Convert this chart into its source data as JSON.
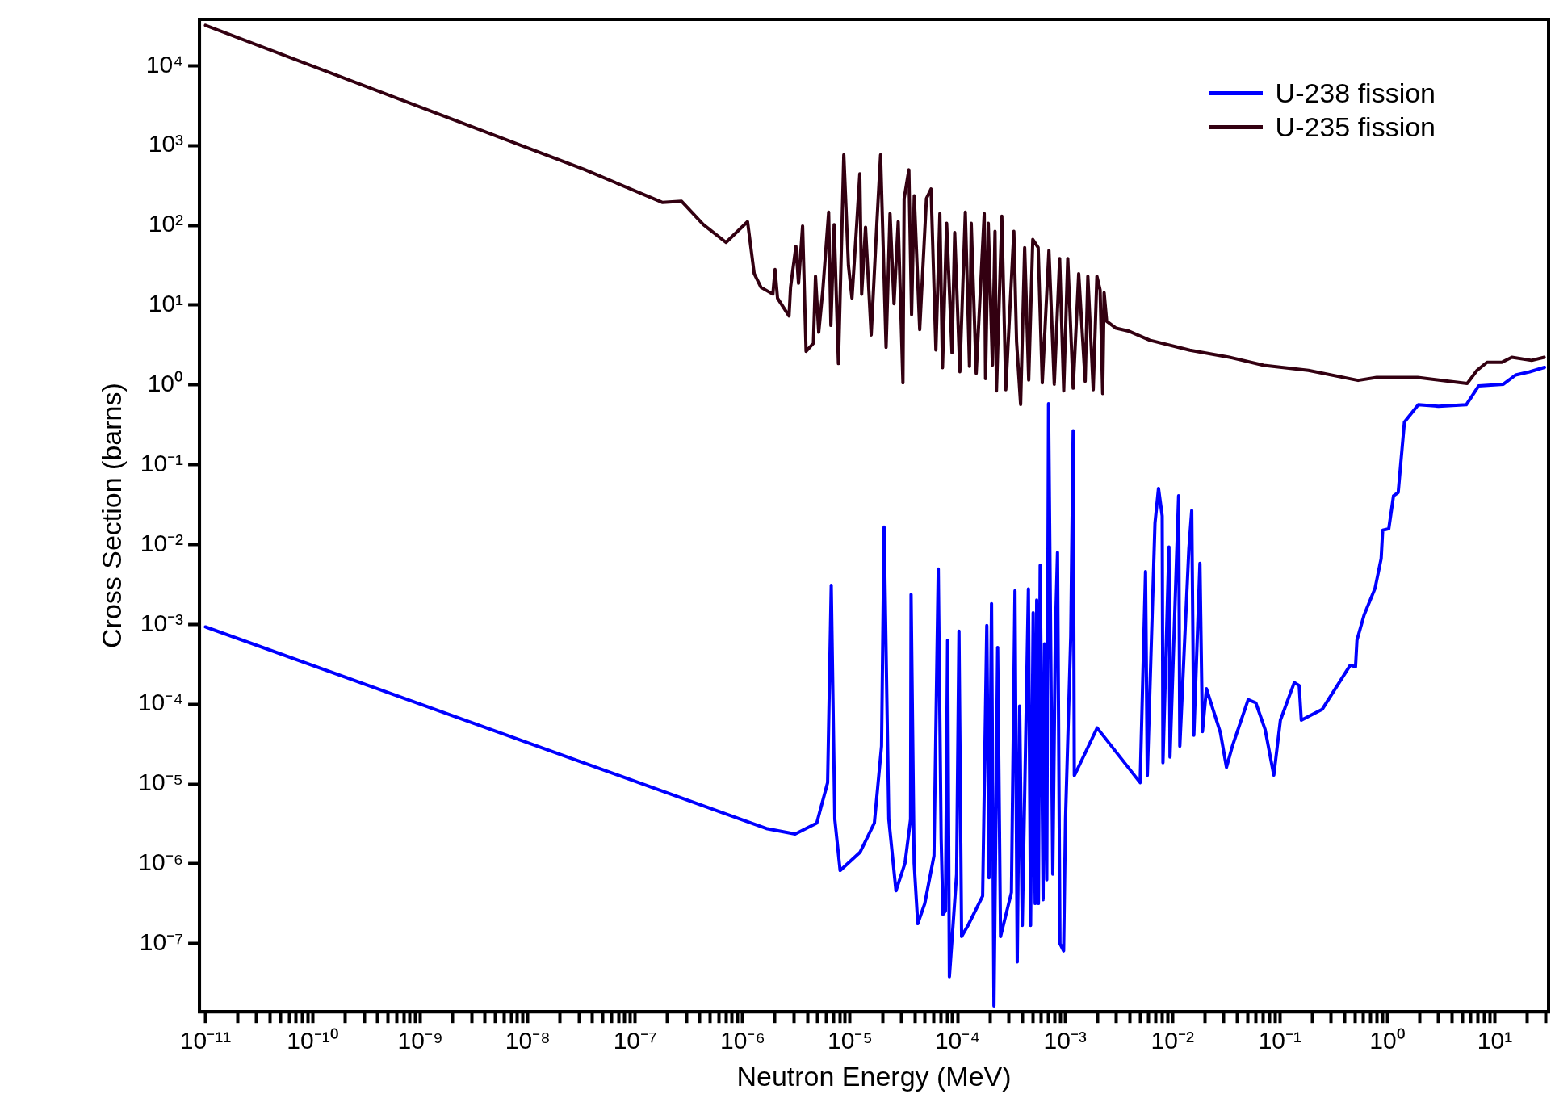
{
  "chart_data": {
    "type": "line",
    "xlabel": "Neutron Energy (MeV)",
    "ylabel": "Cross Section (barns)",
    "log": "xy",
    "legend": "top right",
    "grid": false,
    "xlim": [
      8.8e-12,
      31.6
    ],
    "ylim": [
      1.4e-08,
      38000.0
    ],
    "xticks": [
      {
        "value": 1e-11,
        "label": "10⁻¹¹"
      },
      {
        "value": 2e-11,
        "label": null
      },
      {
        "value": 3e-11,
        "label": null
      },
      {
        "value": 4e-11,
        "label": null
      },
      {
        "value": 5e-11,
        "label": null
      },
      {
        "value": 6e-11,
        "label": null
      },
      {
        "value": 7e-11,
        "label": null
      },
      {
        "value": 8e-11,
        "label": null
      },
      {
        "value": 9e-11,
        "label": null
      },
      {
        "value": 1e-10,
        "label": "10⁻¹⁰"
      },
      {
        "value": 2e-10,
        "label": null
      },
      {
        "value": 3e-10,
        "label": null
      },
      {
        "value": 4e-10,
        "label": null
      },
      {
        "value": 5e-10,
        "label": null
      },
      {
        "value": 6e-10,
        "label": null
      },
      {
        "value": 7e-10,
        "label": null
      },
      {
        "value": 8e-10,
        "label": null
      },
      {
        "value": 9e-10,
        "label": null
      },
      {
        "value": 1e-09,
        "label": "10⁻⁹"
      },
      {
        "value": 2e-09,
        "label": null
      },
      {
        "value": 3e-09,
        "label": null
      },
      {
        "value": 4e-09,
        "label": null
      },
      {
        "value": 5e-09,
        "label": null
      },
      {
        "value": 6e-09,
        "label": null
      },
      {
        "value": 7e-09,
        "label": null
      },
      {
        "value": 8e-09,
        "label": null
      },
      {
        "value": 9e-09,
        "label": null
      },
      {
        "value": 1e-08,
        "label": "10⁻⁸"
      },
      {
        "value": 2e-08,
        "label": null
      },
      {
        "value": 3e-08,
        "label": null
      },
      {
        "value": 4e-08,
        "label": null
      },
      {
        "value": 5e-08,
        "label": null
      },
      {
        "value": 6e-08,
        "label": null
      },
      {
        "value": 7e-08,
        "label": null
      },
      {
        "value": 8e-08,
        "label": null
      },
      {
        "value": 9e-08,
        "label": null
      },
      {
        "value": 1e-07,
        "label": "10⁻⁷"
      },
      {
        "value": 2e-07,
        "label": null
      },
      {
        "value": 3e-07,
        "label": null
      },
      {
        "value": 4e-07,
        "label": null
      },
      {
        "value": 5e-07,
        "label": null
      },
      {
        "value": 6e-07,
        "label": null
      },
      {
        "value": 7e-07,
        "label": null
      },
      {
        "value": 8e-07,
        "label": null
      },
      {
        "value": 9e-07,
        "label": null
      },
      {
        "value": 1e-06,
        "label": "10⁻⁶"
      },
      {
        "value": 2e-06,
        "label": null
      },
      {
        "value": 3e-06,
        "label": null
      },
      {
        "value": 4e-06,
        "label": null
      },
      {
        "value": 5e-06,
        "label": null
      },
      {
        "value": 6e-06,
        "label": null
      },
      {
        "value": 7e-06,
        "label": null
      },
      {
        "value": 8e-06,
        "label": null
      },
      {
        "value": 9e-06,
        "label": null
      },
      {
        "value": 1e-05,
        "label": "10⁻⁵"
      },
      {
        "value": 2e-05,
        "label": null
      },
      {
        "value": 3e-05,
        "label": null
      },
      {
        "value": 4e-05,
        "label": null
      },
      {
        "value": 5e-05,
        "label": null
      },
      {
        "value": 6e-05,
        "label": null
      },
      {
        "value": 7e-05,
        "label": null
      },
      {
        "value": 8e-05,
        "label": null
      },
      {
        "value": 9e-05,
        "label": null
      },
      {
        "value": 0.0001,
        "label": "10⁻⁴"
      },
      {
        "value": 0.0002,
        "label": null
      },
      {
        "value": 0.0003,
        "label": null
      },
      {
        "value": 0.0004,
        "label": null
      },
      {
        "value": 0.0005,
        "label": null
      },
      {
        "value": 0.0006,
        "label": null
      },
      {
        "value": 0.0007,
        "label": null
      },
      {
        "value": 0.0008,
        "label": null
      },
      {
        "value": 0.0009,
        "label": null
      },
      {
        "value": 0.001,
        "label": "10⁻³"
      },
      {
        "value": 0.002,
        "label": null
      },
      {
        "value": 0.003,
        "label": null
      },
      {
        "value": 0.004,
        "label": null
      },
      {
        "value": 0.005,
        "label": null
      },
      {
        "value": 0.006,
        "label": null
      },
      {
        "value": 0.007,
        "label": null
      },
      {
        "value": 0.008,
        "label": null
      },
      {
        "value": 0.009,
        "label": null
      },
      {
        "value": 0.01,
        "label": "10⁻²"
      },
      {
        "value": 0.02,
        "label": null
      },
      {
        "value": 0.03,
        "label": null
      },
      {
        "value": 0.04,
        "label": null
      },
      {
        "value": 0.05,
        "label": null
      },
      {
        "value": 0.06,
        "label": null
      },
      {
        "value": 0.07,
        "label": null
      },
      {
        "value": 0.08,
        "label": null
      },
      {
        "value": 0.09,
        "label": null
      },
      {
        "value": 0.1,
        "label": "10⁻¹"
      },
      {
        "value": 0.2,
        "label": null
      },
      {
        "value": 0.3,
        "label": null
      },
      {
        "value": 0.4,
        "label": null
      },
      {
        "value": 0.5,
        "label": null
      },
      {
        "value": 0.6,
        "label": null
      },
      {
        "value": 0.7,
        "label": null
      },
      {
        "value": 0.8,
        "label": null
      },
      {
        "value": 0.9,
        "label": null
      },
      {
        "value": 1,
        "label": "10⁰"
      },
      {
        "value": 2,
        "label": null
      },
      {
        "value": 3,
        "label": null
      },
      {
        "value": 4,
        "label": null
      },
      {
        "value": 5,
        "label": null
      },
      {
        "value": 6,
        "label": null
      },
      {
        "value": 7,
        "label": null
      },
      {
        "value": 8,
        "label": null
      },
      {
        "value": 9,
        "label": null
      },
      {
        "value": 10,
        "label": "10¹"
      },
      {
        "value": 20,
        "label": null
      },
      {
        "value": 30,
        "label": null
      }
    ],
    "yticks": [
      {
        "value": 1e-07,
        "label": "10⁻⁷"
      },
      {
        "value": 1e-06,
        "label": "10⁻⁶"
      },
      {
        "value": 1e-05,
        "label": "10⁻⁵"
      },
      {
        "value": 0.0001,
        "label": "10⁻⁴"
      },
      {
        "value": 0.001,
        "label": "10⁻³"
      },
      {
        "value": 0.01,
        "label": "10⁻²"
      },
      {
        "value": 0.1,
        "label": "10⁻¹"
      },
      {
        "value": 1,
        "label": "10⁰"
      },
      {
        "value": 10,
        "label": "10¹"
      },
      {
        "value": 100,
        "label": "10²"
      },
      {
        "value": 1000,
        "label": "10³"
      },
      {
        "value": 10000,
        "label": "10⁴"
      }
    ],
    "series": [
      {
        "name": "U-238 fission",
        "color": "#0000ff",
        "x": [
          1e-11,
          1.66e-06,
          3.08e-06,
          4.89e-06,
          6.17e-06,
          6.67e-06,
          7.2e-06,
          8.07e-06,
          1.24e-05,
          1.68e-05,
          1.96e-05,
          2.07e-05,
          2.29e-05,
          2.67e-05,
          3.24e-05,
          3.65e-05,
          3.69e-05,
          3.94e-05,
          4.26e-05,
          4.95e-05,
          6.03e-05,
          6.61e-05,
          7.03e-05,
          7.31e-05,
          7.71e-05,
          8.07e-05,
          8.39e-05,
          9.79e-05,
          0.000103,
          0.000109,
          0.000125,
          0.000171,
          0.000187,
          0.000196,
          0.000207,
          0.000218,
          0.000236,
          0.000251,
          0.000317,
          0.000342,
          0.000359,
          0.000378,
          0.0004,
          0.000456,
          0.000478,
          0.000505,
          0.000527,
          0.000545,
          0.000565,
          0.000587,
          0.000625,
          0.000644,
          0.000676,
          0.000702,
          0.000769,
          0.000813,
          0.000851,
          0.000897,
          0.00097,
          0.00101,
          0.00113,
          0.00119,
          0.00122,
          0.00127,
          0.00199,
          0.005,
          0.00561,
          0.00583,
          0.00687,
          0.00741,
          0.00802,
          0.00815,
          0.00927,
          0.00948,
          0.0114,
          0.0117,
          0.0142,
          0.0151,
          0.0158,
          0.018,
          0.019,
          0.0207,
          0.0279,
          0.0318,
          0.0363,
          0.0506,
          0.0596,
          0.0728,
          0.0877,
          0.101,
          0.136,
          0.151,
          0.158,
          0.248,
          0.451,
          0.505,
          0.521,
          0.607,
          0.767,
          0.875,
          0.904,
          1.03,
          1.14,
          1.26,
          1.44,
          1.94,
          2.99,
          5.42,
          7.06,
          12.0,
          15.6,
          21.1,
          29.0
        ],
        "values": [
          0.00093,
          2.77e-06,
          2.36e-06,
          3.24e-06,
          1.04e-05,
          0.00308,
          3.61e-06,
          8.24e-07,
          1.4e-06,
          3.24e-06,
          2.98e-05,
          0.0166,
          3.61e-06,
          4.6e-07,
          1.02e-06,
          3.61e-06,
          0.00237,
          1.02e-06,
          1.78e-07,
          3.18e-07,
          1.26e-06,
          0.00495,
          2.12e-06,
          2.32e-07,
          2.58e-07,
          0.000632,
          3.86e-08,
          7.41e-07,
          0.000824,
          1.23e-07,
          1.69e-07,
          3.94e-07,
          0.000966,
          6.67e-07,
          0.00182,
          1.66e-08,
          0.000513,
          1.23e-07,
          4.38e-07,
          0.00263,
          5.9e-08,
          9.48e-05,
          1.69e-07,
          0.00277,
          1.69e-07,
          0.0014,
          3.18e-07,
          0.00202,
          3.18e-07,
          0.0055,
          3.55e-07,
          0.00057,
          6.3e-07,
          0.583,
          7.41e-07,
          0.000782,
          0.00796,
          1e-07,
          8.1e-08,
          3.61e-06,
          0.000703,
          0.267,
          1.28e-05,
          1.42e-05,
          5.04e-05,
          1.04e-05,
          0.00459,
          1.28e-05,
          0.0185,
          0.0505,
          0.0229,
          1.85e-05,
          0.00933,
          2.17e-05,
          0.0408,
          2.98e-05,
          0.00883,
          0.0267,
          4.07e-05,
          0.00581,
          4.53e-05,
          0.000156,
          4.4e-05,
          1.62e-05,
          3.06e-05,
          0.000114,
          0.000104,
          4.81e-05,
          1.29e-05,
          6.31e-05,
          0.000187,
          0.000171,
          6.31e-05,
          8.65e-05,
          0.000308,
          0.000294,
          0.000634,
          0.00131,
          0.00282,
          0.00667,
          0.0151,
          0.0158,
          0.0408,
          0.0447,
          0.343,
          0.564,
          0.54,
          0.564,
          0.97,
          1.02,
          1.33,
          1.46,
          1.66
        ]
      },
      {
        "name": "U-235 fission",
        "color": "#330011",
        "x": [
          1e-11,
          3.36e-08,
          1.8e-07,
          2.7e-07,
          4.3e-07,
          7e-07,
          1.11e-06,
          1.28e-06,
          1.48e-06,
          1.91e-06,
          2e-06,
          2.11e-06,
          2.7e-06,
          2.79e-06,
          3.13e-06,
          3.31e-06,
          3.61e-06,
          3.89e-06,
          4.55e-06,
          4.76e-06,
          5.1e-06,
          5.57e-06,
          6.31e-06,
          6.62e-06,
          7.1e-06,
          7.78e-06,
          8.73e-06,
          9.64e-06,
          1.04e-05,
          1.14e-05,
          1.23e-05,
          1.28e-05,
          1.39e-05,
          1.57e-05,
          1.77e-05,
          1.92e-05,
          2.16e-05,
          2.35e-05,
          2.56e-05,
          2.8e-05,
          3.1e-05,
          3.18e-05,
          3.52e-05,
          3.73e-05,
          3.95e-05,
          4.44e-05,
          5.13e-05,
          5.66e-05,
          6.28e-05,
          6.84e-05,
          7.24e-05,
          7.91e-05,
          8.87e-05,
          9.4e-05,
          0.000105,
          0.000118,
          0.000129,
          0.000134,
          0.000149,
          0.000177,
          0.000182,
          0.000193,
          0.000211,
          0.000223,
          0.00023,
          0.000258,
          0.000281,
          0.000334,
          0.000354,
          0.000386,
          0.000421,
          0.000459,
          0.000501,
          0.000562,
          0.000614,
          0.000708,
          0.000794,
          0.000891,
          0.000972,
          0.00106,
          0.00119,
          0.00134,
          0.00154,
          0.00163,
          0.00183,
          0.00198,
          0.00212,
          0.00224,
          0.00231,
          0.00244,
          0.00299,
          0.00388,
          0.00614,
          0.0145,
          0.0339,
          0.0708,
          0.184,
          0.533,
          0.794,
          1.91,
          5.52,
          6.82,
          8.45,
          11.6,
          14.4,
          22.0,
          28.8
        ],
        "values": [
          32000.0,
          500,
          193,
          200,
          102,
          61,
          111,
          24.8,
          16.7,
          13.7,
          27.9,
          12.2,
          7.3,
          16.7,
          54.6,
          18.8,
          98,
          2.63,
          3.33,
          23,
          4.56,
          15.5,
          146,
          5.56,
          102,
          1.85,
          764,
          31.4,
          12.2,
          84,
          441,
          13.7,
          94.6,
          4.22,
          102,
          764,
          2.96,
          140,
          10.4,
          111,
          1.06,
          216,
          495,
          7.6,
          234,
          4.94,
          216,
          285,
          2.74,
          140,
          1.64,
          106,
          2.52,
          81,
          1.46,
          146,
          1.71,
          106,
          1.4,
          140,
          1.2,
          106,
          1.77,
          84,
          0.84,
          130,
          0.87,
          84,
          3.47,
          0.57,
          52.5,
          1.15,
          66.4,
          52.5,
          1.06,
          48.4,
          1.02,
          38.3,
          0.84,
          38.3,
          0.91,
          24.8,
          1.11,
          23,
          0.87,
          23,
          15.5,
          0.78,
          14.3,
          6.27,
          5.13,
          4.74,
          3.63,
          2.72,
          2.22,
          1.76,
          1.52,
          1.14,
          1.24,
          1.24,
          1.04,
          1.52,
          1.92,
          1.92,
          2.22,
          2.03,
          2.22
        ]
      }
    ]
  }
}
